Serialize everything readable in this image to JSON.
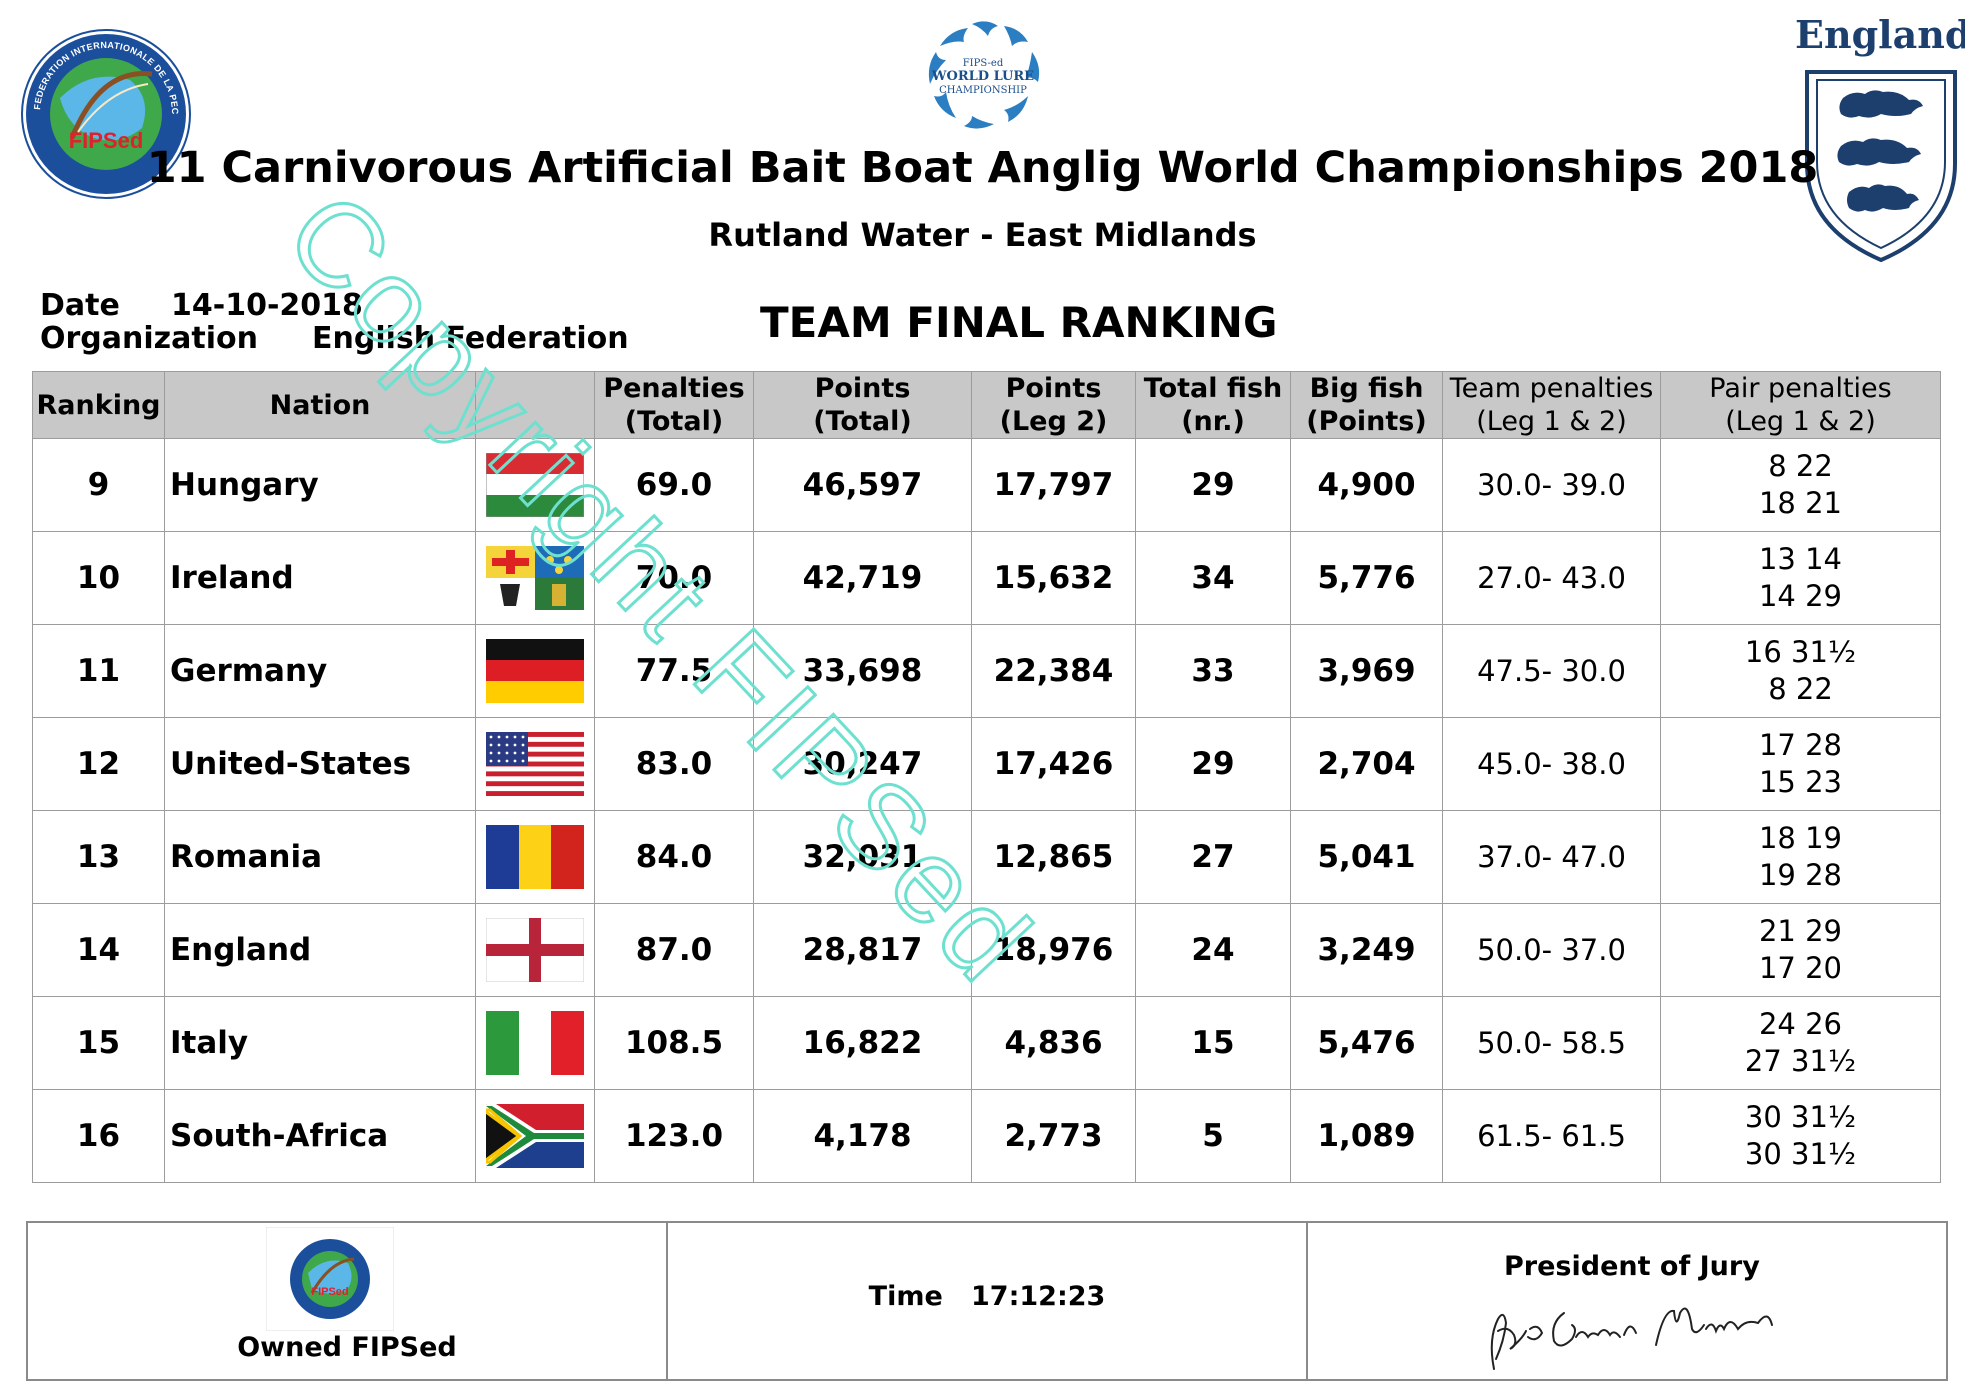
{
  "header": {
    "title": "11 Carnivorous Artificial Bait Boat Anglig World Championships 2018",
    "subtitle": "Rutland Water - East Midlands",
    "left_logo_text": "FEDERATION INTERNATIONALE DE LA PECHE SPORTIVE EN EAU DOUCE",
    "left_logo_abbrev": "FIPSed",
    "center_logo_lines": [
      "FIPS-ed",
      "WORLD LURE",
      "CHAMPIONSHIP"
    ],
    "right_logo_text": "England"
  },
  "meta": {
    "date_label": "Date",
    "date_value": "14-10-2018",
    "org_label": "Organization",
    "org_value": "English Federation"
  },
  "report_title": "TEAM FINAL RANKING",
  "table": {
    "headers": {
      "ranking": "Ranking",
      "nation": "Nation",
      "penalties_1": "Penalties",
      "penalties_2": "(Total)",
      "points_total_1": "Points",
      "points_total_2": "(Total)",
      "points_leg_1": "Points",
      "points_leg_2": "(Leg 2)",
      "fish_1": "Total fish",
      "fish_2": "(nr.)",
      "bigfish_1": "Big fish",
      "bigfish_2": "(Points)",
      "team_pen_1": "Team penalties",
      "team_pen_2": "(Leg 1 & 2)",
      "pair_pen_1": "Pair penalties",
      "pair_pen_2": "(Leg 1 & 2)"
    },
    "rows": [
      {
        "rank": "9",
        "nation": "Hungary",
        "flag": "hungary-flag",
        "penalties": "69.0",
        "points_total": "46,597",
        "points_leg2": "17,797",
        "fish": "29",
        "bigfish": "4,900",
        "team_pen": "30.0- 39.0",
        "pair1": "8 22",
        "pair2": "18 21"
      },
      {
        "rank": "10",
        "nation": "Ireland",
        "flag": "ireland-flag",
        "penalties": "70.0",
        "points_total": "42,719",
        "points_leg2": "15,632",
        "fish": "34",
        "bigfish": "5,776",
        "team_pen": "27.0- 43.0",
        "pair1": "13 14",
        "pair2": "14 29"
      },
      {
        "rank": "11",
        "nation": "Germany",
        "flag": "germany-flag",
        "penalties": "77.5",
        "points_total": "33,698",
        "points_leg2": "22,384",
        "fish": "33",
        "bigfish": "3,969",
        "team_pen": "47.5- 30.0",
        "pair1": "16 31½",
        "pair2": "8 22"
      },
      {
        "rank": "12",
        "nation": "United-States",
        "flag": "usa-flag",
        "penalties": "83.0",
        "points_total": "30,247",
        "points_leg2": "17,426",
        "fish": "29",
        "bigfish": "2,704",
        "team_pen": "45.0- 38.0",
        "pair1": "17 28",
        "pair2": "15 23"
      },
      {
        "rank": "13",
        "nation": "Romania",
        "flag": "romania-flag",
        "penalties": "84.0",
        "points_total": "32,031",
        "points_leg2": "12,865",
        "fish": "27",
        "bigfish": "5,041",
        "team_pen": "37.0- 47.0",
        "pair1": "18 19",
        "pair2": "19 28"
      },
      {
        "rank": "14",
        "nation": "England",
        "flag": "england-flag",
        "penalties": "87.0",
        "points_total": "28,817",
        "points_leg2": "18,976",
        "fish": "24",
        "bigfish": "3,249",
        "team_pen": "50.0- 37.0",
        "pair1": "21 29",
        "pair2": "17 20"
      },
      {
        "rank": "15",
        "nation": "Italy",
        "flag": "italy-flag",
        "penalties": "108.5",
        "points_total": "16,822",
        "points_leg2": "4,836",
        "fish": "15",
        "bigfish": "5,476",
        "team_pen": "50.0- 58.5",
        "pair1": "24 26",
        "pair2": "27 31½"
      },
      {
        "rank": "16",
        "nation": "South-Africa",
        "flag": "south-africa-flag",
        "penalties": "123.0",
        "points_total": "4,178",
        "points_leg2": "2,773",
        "fish": "5",
        "bigfish": "1,089",
        "team_pen": "61.5- 61.5",
        "pair1": "30 31½",
        "pair2": "30 31½"
      }
    ]
  },
  "footer": {
    "owned": "Owned FIPSed",
    "time_label": "Time",
    "time_value": "17:12:23",
    "jury": "President of Jury"
  },
  "watermark": "Copyright FIPSed",
  "colors": {
    "header_bg": "#c8c8c8",
    "border": "#9c9c9c",
    "watermark": "#6ee0cf",
    "fipsed_blue": "#1b4f9c"
  }
}
